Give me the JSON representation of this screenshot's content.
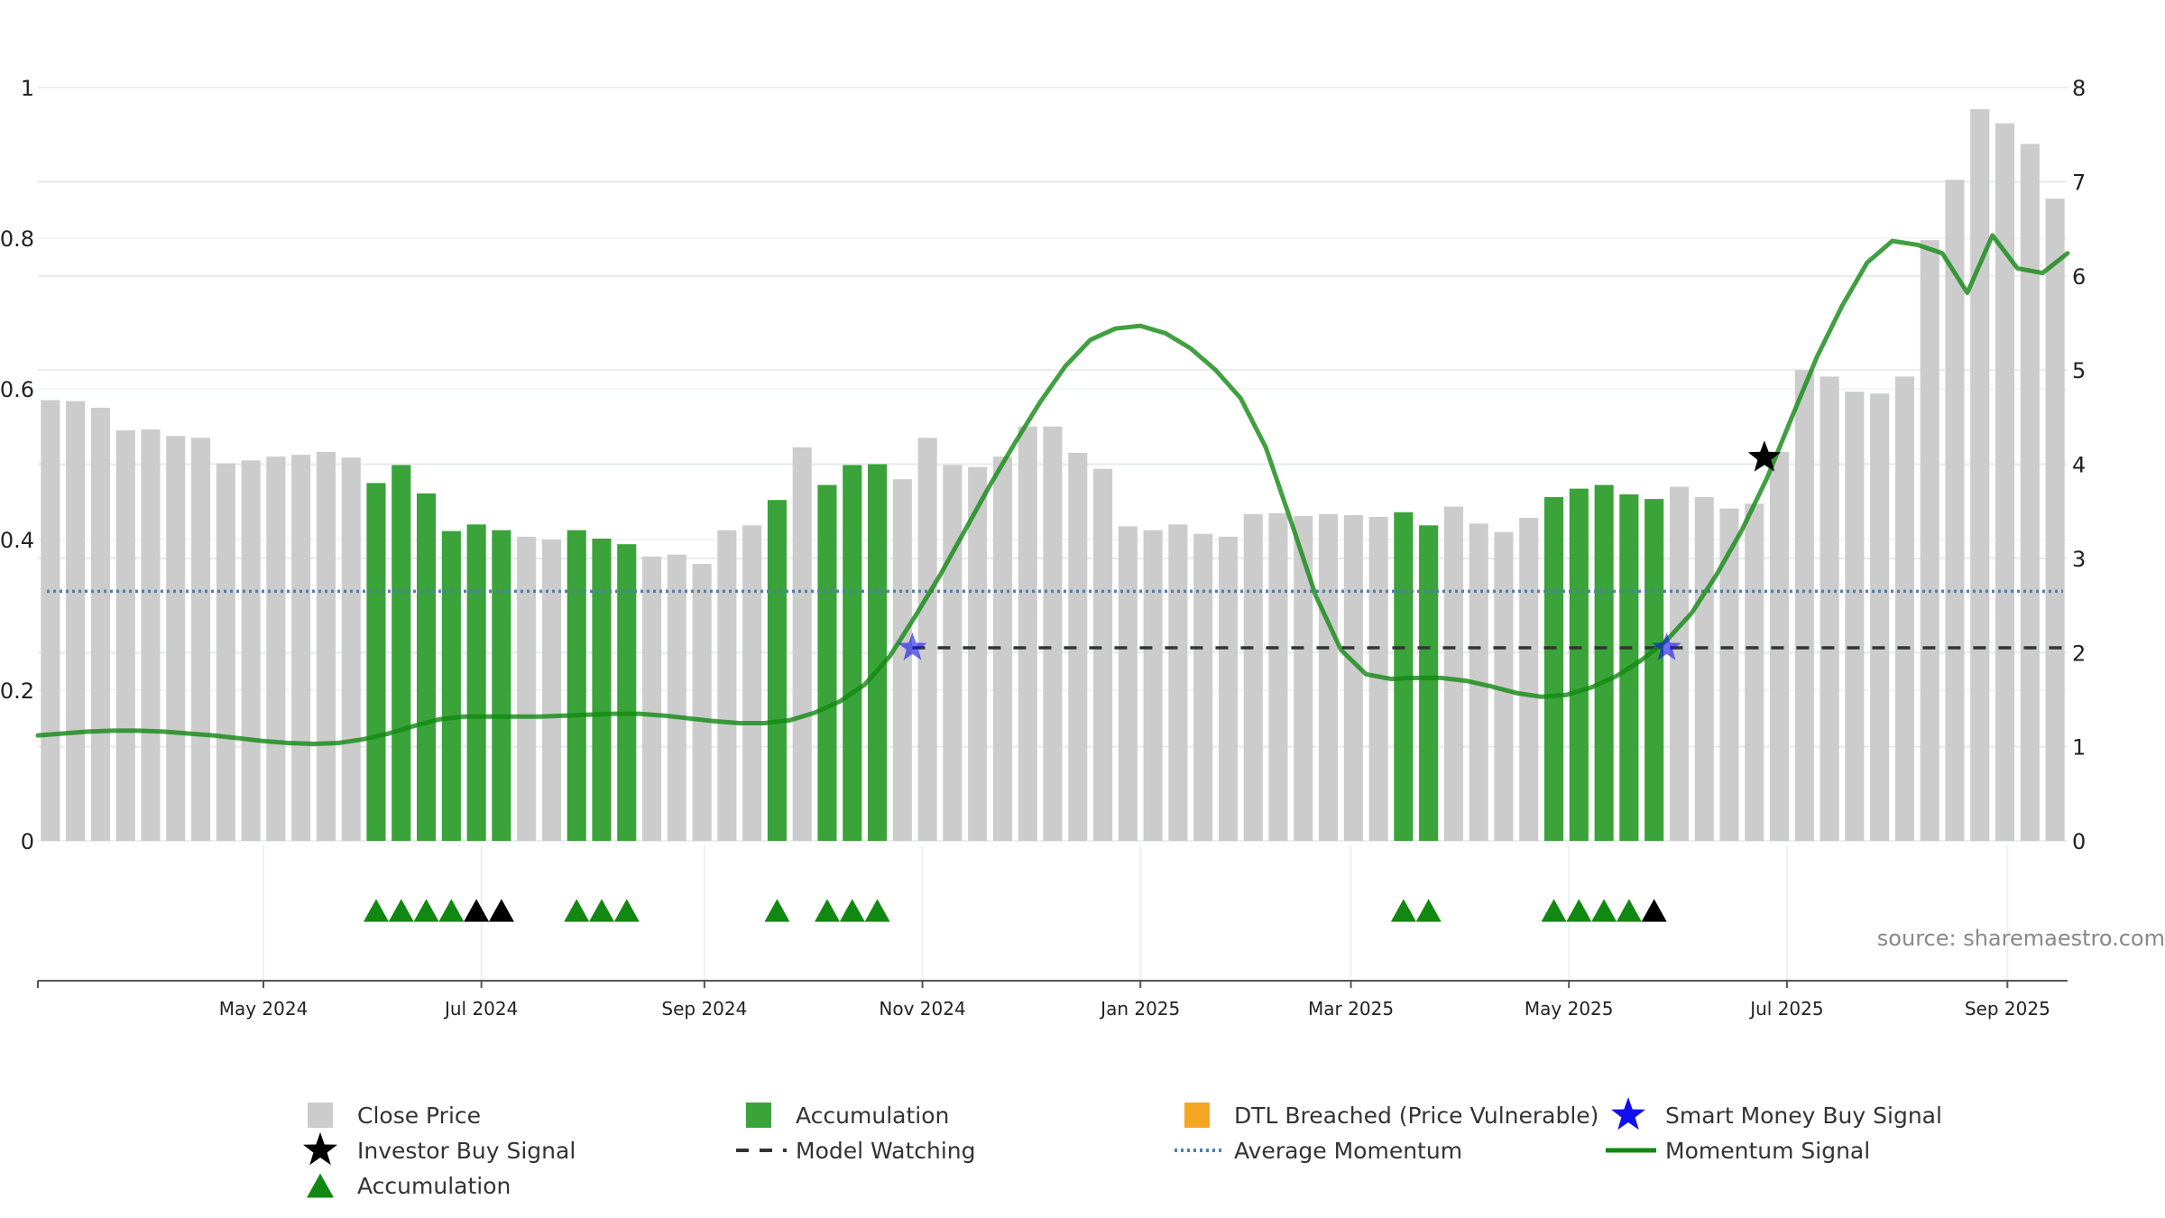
{
  "source_label": "source: sharemaestro.com",
  "colors": {
    "close_price": "#cccccc",
    "accumulation": "#3aa33a",
    "accumulation_marker": "#118811",
    "investor_marker": "#000000",
    "smart_money": "#1010ee",
    "dtl_breached": "#f5a623",
    "average_momentum": "#4f7fae",
    "momentum_signal": "#118811",
    "model_watching": "#333333",
    "grid": "#e6ebee",
    "axis": "#555555"
  },
  "legend": [
    {
      "label": "Close Price",
      "symbol": "square",
      "color_key": "close_price"
    },
    {
      "label": "Accumulation",
      "symbol": "square",
      "color_key": "accumulation"
    },
    {
      "label": "DTL Breached (Price Vulnerable)",
      "symbol": "square",
      "color_key": "dtl_breached"
    },
    {
      "label": "Smart Money Buy Signal",
      "symbol": "star",
      "color_key": "smart_money"
    },
    {
      "label": "Investor Buy Signal",
      "symbol": "star",
      "color_key": "investor_marker"
    },
    {
      "label": "Model Watching",
      "symbol": "dash",
      "color_key": "model_watching"
    },
    {
      "label": "Average Momentum",
      "symbol": "dotted",
      "color_key": "average_momentum"
    },
    {
      "label": "Momentum Signal",
      "symbol": "line",
      "color_key": "momentum_signal"
    },
    {
      "label": "Accumulation",
      "symbol": "triangle",
      "color_key": "accumulation_marker"
    }
  ],
  "chart_data": {
    "type": "bar",
    "title": "",
    "xlabel": "",
    "ylabel_left": "",
    "ylabel_right": "",
    "left_axis": {
      "range": [
        0,
        1
      ],
      "ticks": [
        0,
        0.2,
        0.4,
        0.6,
        0.8,
        1
      ],
      "tick_labels": [
        "0",
        "0.2",
        "0.4",
        "0.6",
        "0.8",
        "1"
      ]
    },
    "right_axis": {
      "range": [
        0,
        8
      ],
      "ticks": [
        0,
        1,
        2,
        3,
        4,
        5,
        6,
        7,
        8
      ],
      "tick_labels": [
        "0",
        "1",
        "2",
        "3",
        "4",
        "5",
        "6",
        "7",
        "8"
      ]
    },
    "x_axis": {
      "ticks": [
        {
          "index": 8.5,
          "label": "May 2024"
        },
        {
          "index": 17.2,
          "label": "Jul 2024"
        },
        {
          "index": 26.1,
          "label": "Sep 2024"
        },
        {
          "index": 34.8,
          "label": "Nov 2024"
        },
        {
          "index": 43.5,
          "label": "Jan 2025"
        },
        {
          "index": 51.9,
          "label": "Mar 2025"
        },
        {
          "index": 60.6,
          "label": "May 2025"
        },
        {
          "index": 69.3,
          "label": "Jul 2025"
        },
        {
          "index": 78.1,
          "label": "Sep 2025"
        }
      ]
    },
    "grid": true,
    "legend_placement": "bottom",
    "close_price": [
      4.68,
      4.67,
      4.6,
      4.36,
      4.37,
      4.3,
      4.28,
      4.01,
      4.04,
      4.08,
      4.1,
      4.13,
      4.07,
      3.8,
      3.99,
      3.69,
      3.29,
      3.36,
      3.3,
      3.23,
      3.2,
      3.3,
      3.21,
      3.15,
      3.02,
      3.04,
      2.94,
      3.3,
      3.35,
      3.62,
      4.18,
      3.78,
      3.99,
      4.0,
      3.84,
      4.28,
      3.99,
      3.97,
      4.08,
      4.4,
      4.4,
      4.12,
      3.95,
      3.34,
      3.3,
      3.36,
      3.26,
      3.23,
      3.47,
      3.48,
      3.45,
      3.47,
      3.46,
      3.44,
      3.49,
      3.35,
      3.55,
      3.37,
      3.28,
      3.43,
      3.65,
      3.74,
      3.78,
      3.68,
      3.63,
      3.76,
      3.65,
      3.53,
      3.58,
      4.13,
      5.0,
      4.93,
      4.77,
      4.75,
      4.93,
      6.38,
      7.02,
      7.77,
      7.62,
      7.4,
      6.82
    ],
    "accumulation_bars": [
      13,
      14,
      15,
      16,
      17,
      18,
      21,
      22,
      23,
      29,
      31,
      32,
      33,
      54,
      55,
      60,
      61,
      62,
      63,
      64
    ],
    "accumulation_markers": [
      13,
      14,
      15,
      16,
      29,
      31,
      32,
      33,
      21,
      22,
      23,
      54,
      55,
      60,
      61,
      62,
      63
    ],
    "investor_triangle_markers": [
      17,
      18,
      64
    ],
    "investor_buy_signal": {
      "index": 68.4,
      "value": 4.07
    },
    "smart_money_buy_signal": [
      {
        "index": 34.4,
        "value": 2.05
      },
      {
        "index": 64.5,
        "value": 2.05
      }
    ],
    "model_watching": {
      "value": 2.05,
      "start_index": 34.4,
      "end_index": 80.5
    },
    "average_momentum": 2.65,
    "momentum_signal": [
      1.12,
      1.14,
      1.16,
      1.17,
      1.17,
      1.16,
      1.14,
      1.12,
      1.09,
      1.06,
      1.04,
      1.03,
      1.04,
      1.08,
      1.14,
      1.22,
      1.29,
      1.32,
      1.32,
      1.32,
      1.32,
      1.33,
      1.34,
      1.35,
      1.35,
      1.33,
      1.3,
      1.27,
      1.25,
      1.25,
      1.28,
      1.36,
      1.48,
      1.66,
      1.96,
      2.38,
      2.82,
      3.3,
      3.78,
      4.23,
      4.66,
      5.04,
      5.32,
      5.44,
      5.47,
      5.39,
      5.23,
      5.0,
      4.7,
      4.18,
      3.4,
      2.6,
      2.03,
      1.77,
      1.72,
      1.73,
      1.73,
      1.7,
      1.64,
      1.57,
      1.53,
      1.55,
      1.63,
      1.75,
      1.92,
      2.13,
      2.42,
      2.83,
      3.3,
      3.85,
      4.5,
      5.14,
      5.68,
      6.14,
      6.37,
      6.33,
      6.24,
      5.82,
      6.43,
      6.08,
      6.03,
      6.24
    ],
    "momentum_signal_start_index": -0.5
  }
}
